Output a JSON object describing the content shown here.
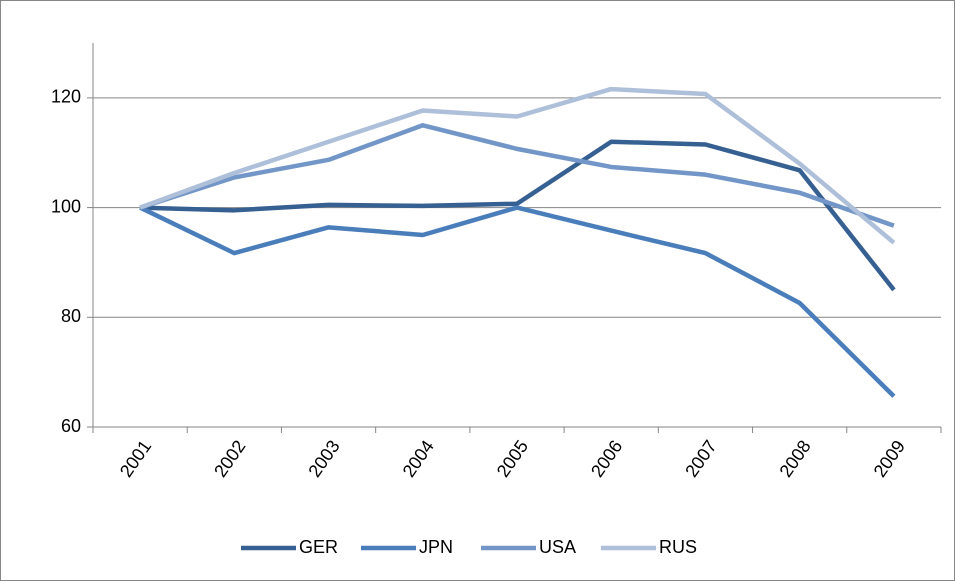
{
  "chart_data": {
    "type": "line",
    "categories": [
      "2001",
      "2002",
      "2003",
      "2004",
      "2005",
      "2006",
      "2007",
      "2008",
      "2009"
    ],
    "series": [
      {
        "name": "GER",
        "color": "#376092",
        "values": [
          100,
          99.5,
          100.5,
          100.3,
          100.7,
          112,
          111.5,
          106.8,
          85
        ]
      },
      {
        "name": "JPN",
        "color": "#4a7ebb",
        "values": [
          100,
          91.7,
          96.4,
          95,
          100,
          95.8,
          91.7,
          82.6,
          65.6
        ]
      },
      {
        "name": "USA",
        "color": "#7396c8",
        "values": [
          100,
          105.5,
          108.7,
          115,
          110.7,
          107.4,
          106,
          102.7,
          96.7
        ]
      },
      {
        "name": "RUS",
        "color": "#adbfd9",
        "values": [
          100,
          106.3,
          112,
          117.7,
          116.6,
          121.6,
          120.7,
          108,
          93.6
        ]
      }
    ],
    "ylim": [
      60,
      130
    ],
    "yticks": [
      60,
      80,
      100,
      120
    ],
    "grid": true,
    "legend": "bottom"
  }
}
